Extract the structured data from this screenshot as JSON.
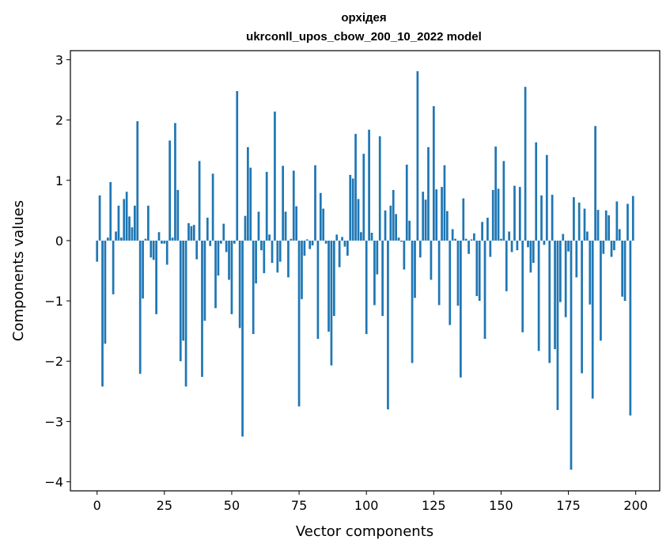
{
  "chart_data": {
    "type": "bar",
    "title": "орхідея",
    "subtitle": "ukrconll_upos_cbow_200_10_2022 model",
    "xlabel": "Vector components",
    "ylabel": "Components values",
    "xlim": [
      -9.9,
      208.9
    ],
    "ylim": [
      -4.15,
      3.15
    ],
    "xticks": [
      0,
      25,
      50,
      75,
      100,
      125,
      150,
      175,
      200
    ],
    "yticks": [
      -4,
      -3,
      -2,
      -1,
      0,
      1,
      2,
      3
    ],
    "bar_color": "#1f77b4",
    "x": [
      0,
      1,
      2,
      3,
      4,
      5,
      6,
      7,
      8,
      9,
      10,
      11,
      12,
      13,
      14,
      15,
      16,
      17,
      18,
      19,
      20,
      21,
      22,
      23,
      24,
      25,
      26,
      27,
      28,
      29,
      30,
      31,
      32,
      33,
      34,
      35,
      36,
      37,
      38,
      39,
      40,
      41,
      42,
      43,
      44,
      45,
      46,
      47,
      48,
      49,
      50,
      51,
      52,
      53,
      54,
      55,
      56,
      57,
      58,
      59,
      60,
      61,
      62,
      63,
      64,
      65,
      66,
      67,
      68,
      69,
      70,
      71,
      72,
      73,
      74,
      75,
      76,
      77,
      78,
      79,
      80,
      81,
      82,
      83,
      84,
      85,
      86,
      87,
      88,
      89,
      90,
      91,
      92,
      93,
      94,
      95,
      96,
      97,
      98,
      99,
      100,
      101,
      102,
      103,
      104,
      105,
      106,
      107,
      108,
      109,
      110,
      111,
      112,
      113,
      114,
      115,
      116,
      117,
      118,
      119,
      120,
      121,
      122,
      123,
      124,
      125,
      126,
      127,
      128,
      129,
      130,
      131,
      132,
      133,
      134,
      135,
      136,
      137,
      138,
      139,
      140,
      141,
      142,
      143,
      144,
      145,
      146,
      147,
      148,
      149,
      150,
      151,
      152,
      153,
      154,
      155,
      156,
      157,
      158,
      159,
      160,
      161,
      162,
      163,
      164,
      165,
      166,
      167,
      168,
      169,
      170,
      171,
      172,
      173,
      174,
      175,
      176,
      177,
      178,
      179,
      180,
      181,
      182,
      183,
      184,
      185,
      186,
      187,
      188,
      189,
      190,
      191,
      192,
      193,
      194,
      195,
      196,
      197,
      198,
      199
    ],
    "values": [
      -0.35,
      0.75,
      -2.42,
      -1.71,
      0.05,
      0.97,
      -0.89,
      0.15,
      0.58,
      0.05,
      0.69,
      0.81,
      0.4,
      0.22,
      0.58,
      1.98,
      -2.21,
      -0.96,
      0.03,
      0.58,
      -0.28,
      -0.32,
      -1.22,
      0.14,
      -0.05,
      -0.05,
      -0.4,
      1.66,
      0.05,
      1.95,
      0.84,
      -2.0,
      -1.66,
      -2.42,
      0.29,
      0.24,
      0.26,
      -0.31,
      1.32,
      -2.26,
      -1.33,
      0.38,
      -0.09,
      1.11,
      -1.12,
      -0.58,
      -0.05,
      0.28,
      -0.19,
      -0.65,
      -1.22,
      -0.05,
      2.48,
      -1.45,
      -3.25,
      0.41,
      1.55,
      1.21,
      -1.55,
      -0.71,
      0.48,
      -0.16,
      -0.54,
      1.14,
      0.1,
      -0.37,
      2.14,
      -0.53,
      -0.35,
      1.24,
      0.48,
      -0.61,
      0.03,
      1.16,
      0.57,
      -2.75,
      -0.97,
      -0.25,
      0.02,
      -0.14,
      -0.08,
      1.25,
      -1.63,
      0.79,
      0.53,
      -0.05,
      -1.51,
      -2.07,
      -1.25,
      0.1,
      -0.44,
      0.06,
      -0.1,
      -0.25,
      1.09,
      1.03,
      1.77,
      0.69,
      0.14,
      1.44,
      -1.55,
      1.84,
      0.13,
      -1.07,
      -0.56,
      1.73,
      -1.25,
      0.5,
      -2.8,
      0.58,
      0.84,
      0.44,
      0.05,
      -0.02,
      -0.48,
      1.26,
      0.33,
      -2.03,
      -0.95,
      2.81,
      -0.28,
      0.81,
      0.68,
      1.55,
      -0.65,
      2.23,
      0.85,
      -1.07,
      0.89,
      1.25,
      0.49,
      -1.4,
      0.19,
      0.03,
      -1.08,
      -2.27,
      0.7,
      0.03,
      -0.22,
      0.02,
      0.12,
      -0.92,
      -1.0,
      0.31,
      -1.63,
      0.38,
      -0.27,
      0.84,
      1.56,
      0.86,
      0.03,
      1.32,
      -0.84,
      0.15,
      -0.19,
      0.91,
      -0.16,
      0.89,
      -1.52,
      2.55,
      -0.11,
      -0.53,
      -0.37,
      1.63,
      -1.83,
      0.75,
      -0.07,
      1.42,
      -2.03,
      0.76,
      -1.8,
      -2.81,
      -1.02,
      0.11,
      -1.27,
      -0.18,
      -3.8,
      0.72,
      -0.61,
      0.63,
      -2.2,
      0.53,
      0.15,
      -1.06,
      -2.62,
      1.9,
      0.51,
      -1.66,
      -0.22,
      0.5,
      0.42,
      -0.27,
      -0.16,
      0.65,
      0.19,
      -0.93,
      -1.0,
      0.61,
      -2.9,
      0.74
    ]
  }
}
